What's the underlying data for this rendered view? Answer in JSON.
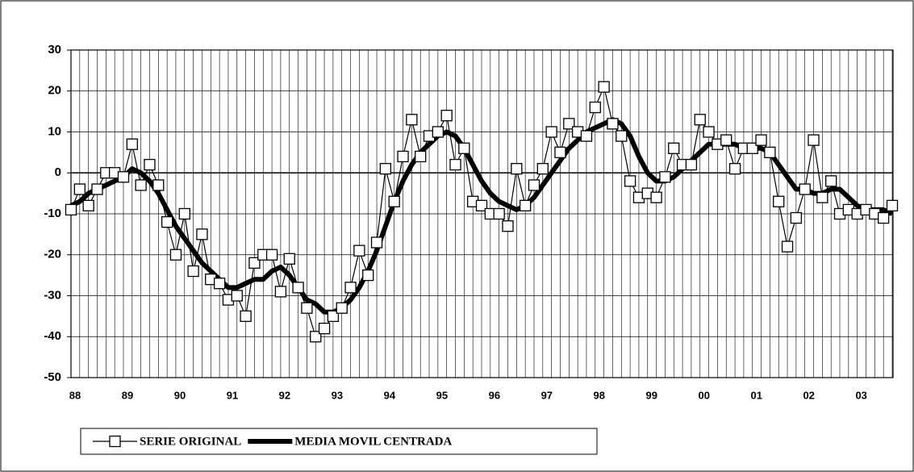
{
  "chart_data": {
    "type": "line",
    "categories": [
      "88",
      null,
      null,
      null,
      null,
      null,
      "89",
      null,
      null,
      null,
      null,
      null,
      "90",
      null,
      null,
      null,
      null,
      null,
      "91",
      null,
      null,
      null,
      null,
      null,
      "92",
      null,
      null,
      null,
      null,
      null,
      "93",
      null,
      null,
      null,
      null,
      null,
      "94",
      null,
      null,
      null,
      null,
      null,
      "95",
      null,
      null,
      null,
      null,
      null,
      "96",
      null,
      null,
      null,
      null,
      null,
      "97",
      null,
      null,
      null,
      null,
      null,
      "98",
      null,
      null,
      null,
      null,
      null,
      "99",
      null,
      null,
      null,
      null,
      null,
      "00",
      null,
      null,
      null,
      null,
      null,
      "01",
      null,
      null,
      null,
      null,
      null,
      "02",
      null,
      null,
      null,
      null,
      null,
      "03",
      null,
      null,
      null,
      null
    ],
    "series": [
      {
        "name": "SERIE ORIGINAL",
        "color": "#000000",
        "marker": "square",
        "values": [
          -9,
          -4,
          -8,
          -4,
          0,
          0,
          -1,
          7,
          -3,
          2,
          -3,
          -12,
          -20,
          -10,
          -24,
          -15,
          -26,
          -27,
          -31,
          -30,
          -35,
          -22,
          -20,
          -20,
          -29,
          -21,
          -28,
          -33,
          -40,
          -38,
          -35,
          -33,
          -28,
          -19,
          -25,
          -17,
          1,
          -7,
          4,
          13,
          4,
          9,
          10,
          14,
          2,
          6,
          -7,
          -8,
          -10,
          -10,
          -13,
          1,
          -8,
          -3,
          1,
          10,
          5,
          12,
          10,
          9,
          16,
          21,
          12,
          9,
          -2,
          -6,
          -5,
          -6,
          -1,
          6,
          2,
          2,
          13,
          10,
          7,
          8,
          1,
          6,
          6,
          8,
          5,
          -7,
          -18,
          -11,
          -4,
          8,
          -6,
          -2,
          -10,
          -9,
          -10,
          -9,
          -10,
          -11,
          -8
        ]
      },
      {
        "name": "MEDIA MOVIL CENTRADA",
        "color": "#000000",
        "marker": "none",
        "values": [
          -8,
          -7,
          -5,
          -4,
          -3,
          -2,
          -1,
          1,
          0,
          -2,
          -5,
          -9,
          -13,
          -16,
          -19,
          -22,
          -24,
          -26,
          -28,
          -28,
          -27,
          -26,
          -26,
          -24,
          -23,
          -25,
          -28,
          -31,
          -32,
          -34,
          -34,
          -33,
          -31,
          -28,
          -24,
          -19,
          -13,
          -7,
          -2,
          2,
          5,
          7,
          9,
          10,
          9,
          6,
          2,
          -2,
          -5,
          -7,
          -8,
          -9,
          -8,
          -6,
          -3,
          0,
          3,
          6,
          8,
          10,
          11,
          12,
          13,
          12,
          9,
          4,
          0,
          -2,
          -2,
          -1,
          1,
          3,
          5,
          7,
          7,
          7,
          7,
          6,
          6,
          6,
          5,
          2,
          -1,
          -4,
          -4,
          -5,
          -5,
          -4,
          -4,
          -6,
          -8,
          -9,
          -9,
          -9,
          -10
        ]
      }
    ],
    "ylim": [
      -50,
      30
    ],
    "yticks": [
      -50,
      -40,
      -30,
      -20,
      -10,
      0,
      10,
      20,
      30
    ],
    "grid": true,
    "legend": "bottom"
  }
}
